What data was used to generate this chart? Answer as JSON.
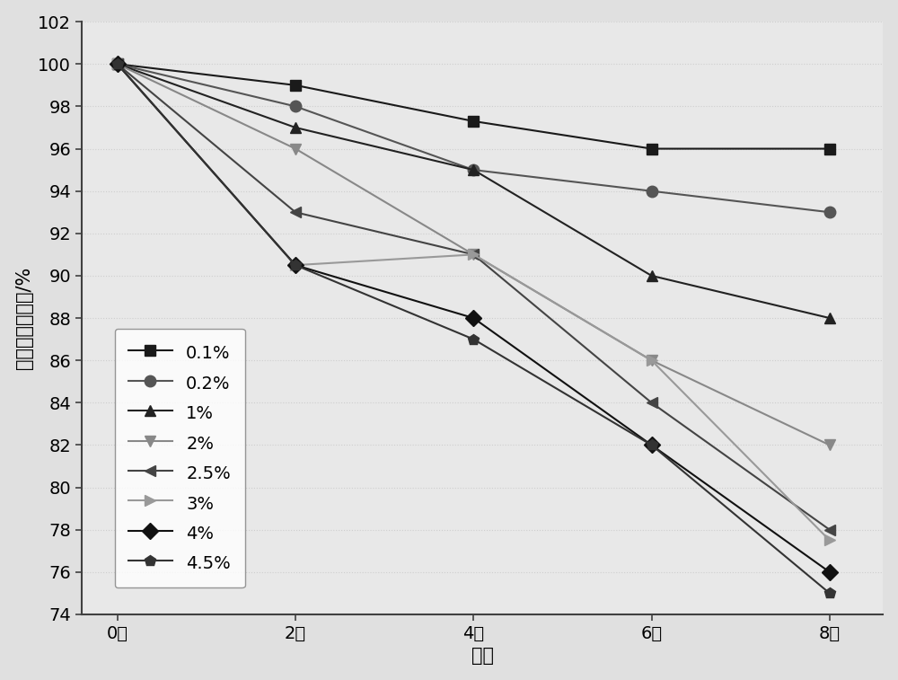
{
  "title": "",
  "xlabel": "时间",
  "ylabel": "黑色素的变化率/%",
  "x_ticks": [
    0,
    2,
    4,
    6,
    8
  ],
  "x_tick_labels": [
    "0周",
    "2周",
    "4周",
    "6周",
    "8周"
  ],
  "ylim": [
    74,
    102
  ],
  "yticks": [
    74,
    76,
    78,
    80,
    82,
    84,
    86,
    88,
    90,
    92,
    94,
    96,
    98,
    100,
    102
  ],
  "series": [
    {
      "label": "0.1%",
      "values": [
        100,
        99,
        97.3,
        96,
        96
      ],
      "color": "#1a1a1a",
      "marker": "s",
      "linestyle": "-"
    },
    {
      "label": "0.2%",
      "values": [
        100,
        98,
        95,
        94,
        93
      ],
      "color": "#555555",
      "marker": "o",
      "linestyle": "-"
    },
    {
      "label": "1%",
      "values": [
        100,
        97,
        95,
        90,
        88
      ],
      "color": "#222222",
      "marker": "^",
      "linestyle": "-"
    },
    {
      "label": "2%",
      "values": [
        100,
        96,
        91,
        86,
        82
      ],
      "color": "#888888",
      "marker": "v",
      "linestyle": "-"
    },
    {
      "label": "2.5%",
      "values": [
        100,
        93,
        91,
        84,
        78
      ],
      "color": "#444444",
      "marker": "<",
      "linestyle": "-"
    },
    {
      "label": "3%",
      "values": [
        100,
        90.5,
        91,
        86,
        77.5
      ],
      "color": "#999999",
      "marker": ">",
      "linestyle": "-"
    },
    {
      "label": "4%",
      "values": [
        100,
        90.5,
        88,
        82,
        76
      ],
      "color": "#111111",
      "marker": "D",
      "linestyle": "-"
    },
    {
      "label": "4.5%",
      "values": [
        100,
        90.5,
        87,
        82,
        75
      ],
      "color": "#333333",
      "marker": "p",
      "linestyle": "-"
    }
  ],
  "legend_loc": "lower left",
  "background_color": "#e8e8e8",
  "grid_color": "#d0d0d0",
  "font_size": 15,
  "tick_fontsize": 14,
  "legend_fontsize": 14
}
